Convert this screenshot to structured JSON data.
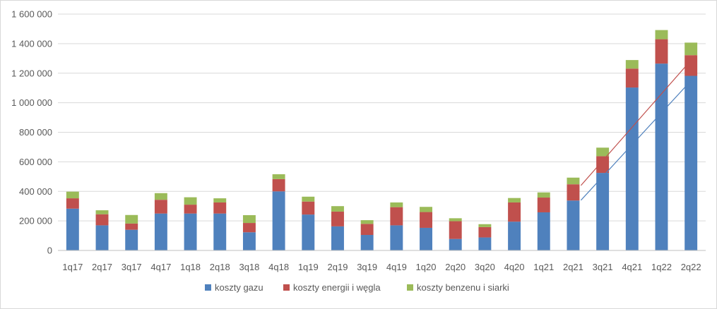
{
  "chart_data": {
    "type": "bar",
    "stacked": true,
    "categories": [
      "1q17",
      "2q17",
      "3q17",
      "4q17",
      "1q18",
      "2q18",
      "3q18",
      "4q18",
      "1q19",
      "2q19",
      "3q19",
      "4q19",
      "1q20",
      "2q20",
      "3q20",
      "4q20",
      "1q21",
      "2q21",
      "3q21",
      "4q21",
      "1q22",
      "2q22"
    ],
    "series": [
      {
        "name": "koszty gazu",
        "color": "#4f81bd",
        "values": [
          283000,
          170000,
          140000,
          250000,
          250000,
          250000,
          123000,
          400000,
          243000,
          163000,
          105000,
          170000,
          153000,
          78000,
          88000,
          195000,
          258000,
          338000,
          525000,
          1103000,
          1265000,
          1182000
        ]
      },
      {
        "name": "koszty energii i węgla",
        "color": "#c0504d",
        "values": [
          70000,
          75000,
          42000,
          93000,
          60000,
          75000,
          63000,
          83000,
          88000,
          100000,
          75000,
          123000,
          107000,
          120000,
          70000,
          130000,
          100000,
          110000,
          113000,
          128000,
          165000,
          140000
        ]
      },
      {
        "name": "koszty benzenu i siarki",
        "color": "#9bbb59",
        "values": [
          45000,
          27000,
          58000,
          45000,
          50000,
          28000,
          53000,
          33000,
          33000,
          37000,
          25000,
          32000,
          35000,
          20000,
          20000,
          30000,
          35000,
          45000,
          58000,
          58000,
          62000,
          85000
        ]
      }
    ],
    "title": "",
    "xlabel": "",
    "ylabel": "",
    "ylim": [
      0,
      1600000
    ],
    "yticks": [
      0,
      200000,
      400000,
      600000,
      800000,
      1000000,
      1200000,
      1400000,
      1600000
    ],
    "ytick_labels": [
      "0",
      "200 000",
      "400 000",
      "600 000",
      "800 000",
      "1 000 000",
      "1 200 000",
      "1 400 000",
      "1 600 000"
    ],
    "grid": true,
    "legend_position": "bottom",
    "annotations": [
      {
        "kind": "arrow",
        "color": "#c0504d",
        "from": {
          "x": "2q21",
          "y": 440000
        },
        "to": {
          "x": "2q22",
          "y": 1320000
        }
      },
      {
        "kind": "arrow",
        "color": "#4f81bd",
        "from": {
          "x": "2q21",
          "y": 340000
        },
        "to": {
          "x": "2q22",
          "y": 1180000
        }
      }
    ]
  }
}
